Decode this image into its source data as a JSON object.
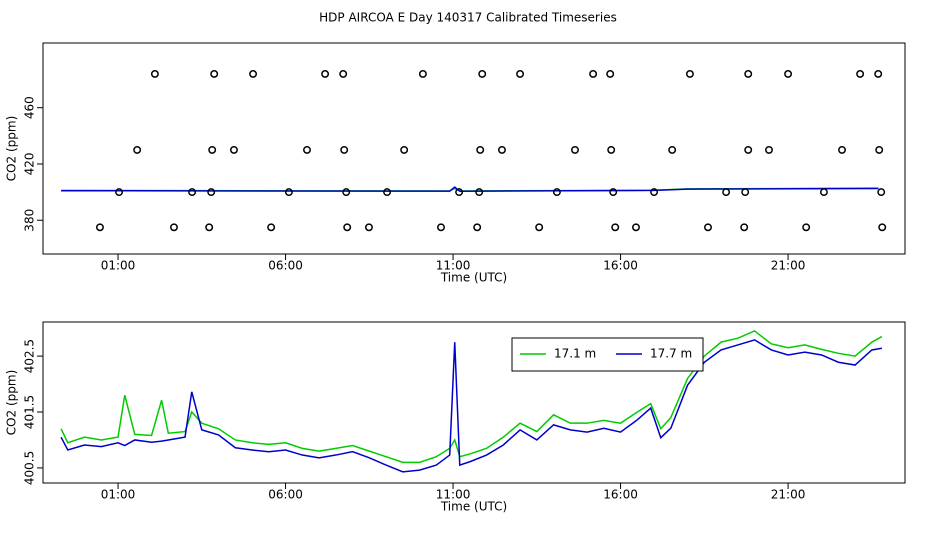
{
  "title": "HDP AIRCOA E  Day 140317  Calibrated Timeseries",
  "chart_data": [
    {
      "type": "scatter",
      "ylabel": "CO2 (ppm)",
      "xlabel": "Time (UTC)",
      "color": "#000000",
      "xlim": [
        -1.24,
        24.49
      ],
      "ylim": [
        356,
        506
      ],
      "xticks": [
        {
          "value": 1,
          "label": "01:00"
        },
        {
          "value": 6,
          "label": "06:00"
        },
        {
          "value": 11,
          "label": "11:00"
        },
        {
          "value": 16,
          "label": "16:00"
        },
        {
          "value": 21,
          "label": "21:00"
        }
      ],
      "yticks": [
        380,
        420,
        460
      ],
      "x": [
        2.1,
        3.87,
        5.03,
        7.18,
        7.72,
        10.1,
        11.87,
        13.0,
        15.18,
        15.69,
        18.07,
        19.81,
        21.0,
        23.15,
        23.69,
        1.57,
        3.81,
        4.46,
        6.64,
        7.75,
        9.54,
        11.81,
        12.46,
        14.64,
        15.72,
        17.54,
        19.81,
        20.43,
        22.61,
        23.72,
        1.03,
        3.21,
        3.78,
        6.1,
        7.81,
        9.03,
        11.18,
        11.78,
        14.1,
        15.78,
        17.0,
        19.15,
        19.72,
        22.07,
        23.78,
        0.46,
        2.67,
        3.72,
        5.57,
        7.84,
        8.49,
        10.64,
        11.72,
        13.57,
        15.84,
        16.46,
        18.61,
        19.69,
        21.54,
        23.81
      ],
      "values": [
        484,
        484,
        484,
        484,
        484,
        484,
        484,
        484,
        484,
        484,
        484,
        484,
        484,
        484,
        484,
        430,
        430,
        430,
        430,
        430,
        430,
        430,
        430,
        430,
        430,
        430,
        430,
        430,
        430,
        430,
        400,
        400,
        400,
        400,
        400,
        400,
        400,
        400,
        400,
        400,
        400,
        400,
        400,
        400,
        400,
        375,
        375,
        375,
        375,
        375,
        375,
        375,
        375,
        375,
        375,
        375,
        375,
        375,
        375,
        375
      ],
      "series": [
        {
          "color": "#00cc00",
          "x": [
            -0.7,
            6,
            10.9,
            11.05,
            11.2,
            17,
            18,
            23.7
          ],
          "values": [
            401.2,
            400.9,
            400.8,
            402.8,
            400.8,
            401.3,
            402.3,
            402.8
          ]
        },
        {
          "color": "#0000cc",
          "x": [
            -0.7,
            6,
            10.9,
            11.05,
            11.2,
            17,
            18,
            23.7
          ],
          "values": [
            401.0,
            400.8,
            400.7,
            403.6,
            400.6,
            401.2,
            402.1,
            402.6
          ]
        }
      ]
    },
    {
      "type": "line",
      "ylabel": "CO2 (ppm)",
      "xlabel": "Time (UTC)",
      "legend": "top right",
      "xlim": [
        -1.24,
        24.49
      ],
      "ylim": [
        400.23,
        403.11
      ],
      "xticks": [
        {
          "value": 1,
          "label": "01:00"
        },
        {
          "value": 6,
          "label": "06:00"
        },
        {
          "value": 11,
          "label": "11:00"
        },
        {
          "value": 16,
          "label": "16:00"
        },
        {
          "value": 21,
          "label": "21:00"
        }
      ],
      "yticks": [
        400.5,
        401.5,
        402.5
      ],
      "x": [
        -0.7,
        -0.5,
        0,
        0.5,
        1,
        1.2,
        1.5,
        2,
        2.3,
        2.5,
        3,
        3.2,
        3.5,
        4,
        4.5,
        5,
        5.5,
        6,
        6.5,
        7,
        7.5,
        8,
        8.5,
        9,
        9.5,
        10,
        10.5,
        10.9,
        11.05,
        11.2,
        11.5,
        12,
        12.5,
        13,
        13.5,
        14,
        14.5,
        15,
        15.5,
        16,
        16.5,
        16.9,
        17.2,
        17.5,
        18,
        18.5,
        19,
        19.5,
        20,
        20.5,
        21,
        21.5,
        22,
        22.5,
        23,
        23.5,
        23.8
      ],
      "series": [
        {
          "name": "17.1 m",
          "color": "#00cc00",
          "values": [
            401.2,
            400.95,
            401.05,
            401.0,
            401.05,
            401.8,
            401.1,
            401.08,
            401.71,
            401.12,
            401.15,
            401.5,
            401.3,
            401.2,
            401.0,
            400.95,
            400.92,
            400.95,
            400.85,
            400.8,
            400.85,
            400.9,
            400.8,
            400.7,
            400.6,
            400.6,
            400.7,
            400.85,
            401.0,
            400.7,
            400.75,
            400.85,
            401.05,
            401.3,
            401.15,
            401.45,
            401.3,
            401.3,
            401.35,
            401.3,
            401.5,
            401.65,
            401.2,
            401.4,
            402.1,
            402.5,
            402.75,
            402.82,
            402.95,
            402.72,
            402.65,
            402.7,
            402.62,
            402.55,
            402.5,
            402.75,
            402.85
          ]
        },
        {
          "name": "17.7 m",
          "color": "#0000cc",
          "values": [
            401.05,
            400.82,
            400.91,
            400.88,
            400.95,
            400.9,
            401.0,
            400.96,
            400.98,
            401.0,
            401.05,
            401.86,
            401.18,
            401.09,
            400.86,
            400.82,
            400.79,
            400.82,
            400.73,
            400.68,
            400.73,
            400.79,
            400.68,
            400.55,
            400.43,
            400.46,
            400.55,
            400.73,
            402.75,
            400.55,
            400.61,
            400.73,
            400.91,
            401.18,
            401.0,
            401.27,
            401.18,
            401.14,
            401.21,
            401.14,
            401.36,
            401.57,
            401.04,
            401.21,
            401.98,
            402.39,
            402.61,
            402.7,
            402.79,
            402.61,
            402.52,
            402.57,
            402.52,
            402.39,
            402.34,
            402.61,
            402.64
          ]
        }
      ]
    }
  ]
}
